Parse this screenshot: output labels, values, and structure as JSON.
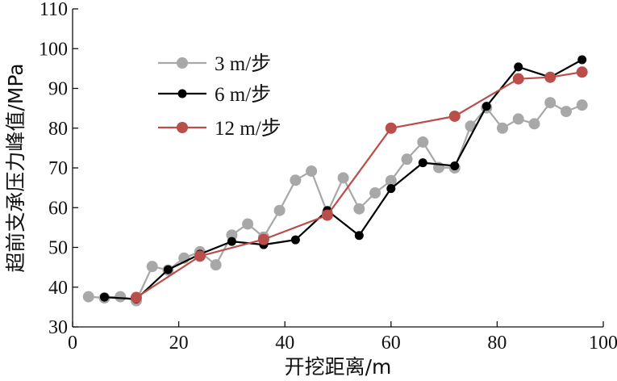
{
  "chart_data": {
    "type": "line",
    "xlabel": "开挖距离/m",
    "ylabel": "超前支承压力峰值/MPa",
    "xlim": [
      0,
      100
    ],
    "ylim": [
      30,
      110
    ],
    "xticks": [
      0,
      20,
      40,
      60,
      80,
      100
    ],
    "yticks": [
      30,
      40,
      50,
      60,
      70,
      80,
      90,
      100,
      110
    ],
    "legend_position": "top-left",
    "series": [
      {
        "name": "3 m/步",
        "color": "#a8a8a8",
        "x": [
          3,
          6,
          9,
          12,
          15,
          18,
          21,
          24,
          27,
          30,
          33,
          36,
          39,
          42,
          45,
          48,
          51,
          54,
          57,
          60,
          63,
          66,
          69,
          72,
          75,
          78,
          81,
          84,
          87,
          90,
          93,
          96
        ],
        "y": [
          37.6,
          37.3,
          37.6,
          36.6,
          45.2,
          44.3,
          47.3,
          48.9,
          45.6,
          53.1,
          55.9,
          52.6,
          59.3,
          66.9,
          69.2,
          58.7,
          67.5,
          59.7,
          63.7,
          66.8,
          72.2,
          76.5,
          70.1,
          70.0,
          80.5,
          85.1,
          80.0,
          82.3,
          81.1,
          86.4,
          84.2,
          85.8
        ]
      },
      {
        "name": "6 m/步",
        "color": "#000000",
        "x": [
          6,
          12,
          18,
          24,
          30,
          36,
          42,
          48,
          54,
          60,
          66,
          72,
          78,
          84,
          90,
          96
        ],
        "y": [
          37.5,
          37.0,
          44.4,
          48.3,
          51.5,
          50.7,
          51.9,
          59.3,
          53.0,
          64.8,
          71.3,
          70.5,
          85.5,
          95.4,
          92.8,
          97.2
        ]
      },
      {
        "name": "12 m/步",
        "color": "#b94e4a",
        "x": [
          12,
          24,
          36,
          48,
          60,
          72,
          84,
          90,
          96
        ],
        "y": [
          37.4,
          47.8,
          52.0,
          58.1,
          80.0,
          83.0,
          92.4,
          92.8,
          94.1
        ]
      }
    ]
  }
}
